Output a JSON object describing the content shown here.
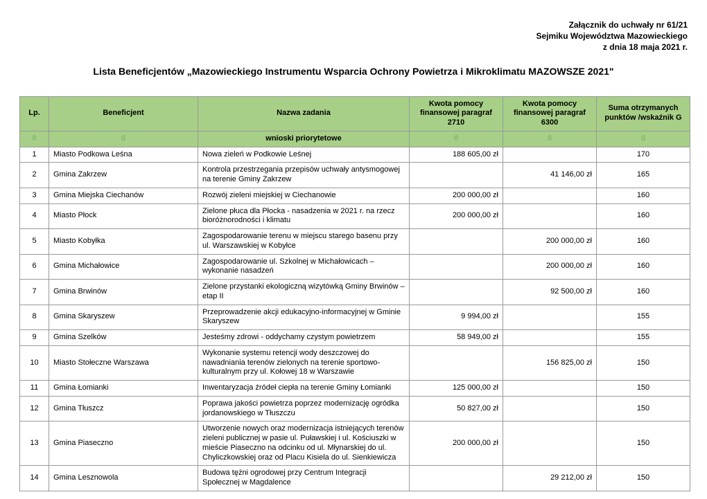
{
  "attachment": {
    "line1": "Załącznik do uchwały nr 61/21",
    "line2": "Sejmiku Województwa Mazowieckiego",
    "line3": "z dnia 18 maja 2021 r."
  },
  "title": "Lista Beneficjentów „Mazowieckiego Instrumentu Wsparcia Ochrony Powietrza i Mikroklimatu MAZOWSZE 2021\"",
  "columns": {
    "lp": "Lp.",
    "beneficjent": "Beneficjent",
    "nazwa": "Nazwa zadania",
    "kwota2710": "Kwota pomocy finansowej paragraf 2710",
    "kwota6300": "Kwota pomocy finansowej paragraf 6300",
    "punkty": "Suma otrzymanych punktów /wskaźnik G"
  },
  "section": {
    "zero": "0",
    "label": "wnioski priorytetowe"
  },
  "rows": [
    {
      "lp": "1",
      "ben": "Miasto Podkowa Leśna",
      "task": "Nowa zieleń w Podkowie Leśnej",
      "k1": "188 605,00 zł",
      "k2": "",
      "pts": "170"
    },
    {
      "lp": "2",
      "ben": "Gmina Zakrzew",
      "task": "Kontrola przestrzegania przepisów uchwały antysmogowej na terenie Gminy Zakrzew",
      "k1": "",
      "k2": "41 146,00 zł",
      "pts": "165"
    },
    {
      "lp": "3",
      "ben": "Gmina Miejska Ciechanów",
      "task": "Rozwój zieleni miejskiej w Ciechanowie",
      "k1": "200 000,00 zł",
      "k2": "",
      "pts": "160"
    },
    {
      "lp": "4",
      "ben": "Miasto Płock",
      "task": "Zielone płuca dla Płocka - nasadzenia w 2021 r. na rzecz bioróżnorodności i klimatu",
      "k1": "200 000,00 zł",
      "k2": "",
      "pts": "160"
    },
    {
      "lp": "5",
      "ben": "Miasto Kobyłka",
      "task": "Zagospodarowanie terenu w miejscu starego basenu przy ul. Warszawskiej w Kobyłce",
      "k1": "",
      "k2": "200 000,00 zł",
      "pts": "160"
    },
    {
      "lp": "6",
      "ben": "Gmina Michałowice",
      "task": "Zagospodarowanie ul. Szkolnej w Michałowicach – wykonanie nasadzeń",
      "k1": "",
      "k2": "200 000,00 zł",
      "pts": "160"
    },
    {
      "lp": "7",
      "ben": "Gmina Brwinów",
      "task": "Zielone przystanki ekologiczną wizytówką Gminy Brwinów – etap II",
      "k1": "",
      "k2": "92 500,00 zł",
      "pts": "160"
    },
    {
      "lp": "8",
      "ben": "Gmina Skaryszew",
      "task": "Przeprowadzenie akcji edukacyjno-informacyjnej w Gminie Skaryszew",
      "k1": "9 994,00 zł",
      "k2": "",
      "pts": "155"
    },
    {
      "lp": "9",
      "ben": "Gmina Szelków",
      "task": "Jesteśmy zdrowi - oddychamy czystym powietrzem",
      "k1": "58 949,00 zł",
      "k2": "",
      "pts": "155"
    },
    {
      "lp": "10",
      "ben": "Miasto Stołeczne Warszawa",
      "task": "Wykonanie systemu retencji wody deszczowej do nawadniania terenów zielonych na terenie sportowo-kulturalnym przy ul. Kołowej 18 w Warszawie",
      "k1": "",
      "k2": "156 825,00 zł",
      "pts": "150"
    },
    {
      "lp": "11",
      "ben": "Gmina Łomianki",
      "task": "Inwentaryzacja źródeł ciepła na terenie Gminy Łomianki",
      "k1": "125 000,00 zł",
      "k2": "",
      "pts": "150"
    },
    {
      "lp": "12",
      "ben": "Gmina Tłuszcz",
      "task": "Poprawa jakości powietrza poprzez modernizację ogródka jordanowskiego w Tłuszczu",
      "k1": "50 827,00 zł",
      "k2": "",
      "pts": "150"
    },
    {
      "lp": "13",
      "ben": "Gmina Piaseczno",
      "task": "Utworzenie nowych oraz modernizacja istniejących terenów zieleni publicznej w pasie ul. Puławskiej i ul. Kościuszki w mieście Piaseczno na odcinku od ul. Młynarskiej do ul. Chyliczkowskiej oraz od Placu Kisiela do ul. Sienkiewicza",
      "k1": "200 000,00 zł",
      "k2": "",
      "pts": "150"
    },
    {
      "lp": "14",
      "ben": "Gmina Lesznowola",
      "task": "Budowa tężni ogrodowej przy Centrum Integracji Społecznej w Magdalence",
      "k1": "",
      "k2": "29 212,00 zł",
      "pts": "150"
    }
  ],
  "style": {
    "header_bg": "#a7cf87",
    "border_color": "#999999",
    "text_color": "#000000",
    "section_faint": "#7fb760",
    "page_bg": "#ffffff"
  }
}
